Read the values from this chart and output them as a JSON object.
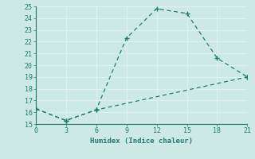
{
  "line1_x": [
    0,
    3,
    6,
    9,
    12,
    15,
    18,
    21
  ],
  "line1_y": [
    16.3,
    15.3,
    16.2,
    22.3,
    24.8,
    24.4,
    20.6,
    19.0
  ],
  "line2_x": [
    0,
    3,
    6,
    21
  ],
  "line2_y": [
    16.3,
    15.3,
    16.2,
    19.0
  ],
  "color": "#217a6e",
  "xlabel": "Humidex (Indice chaleur)",
  "xlim": [
    0,
    21
  ],
  "ylim": [
    15,
    25
  ],
  "xticks": [
    0,
    3,
    6,
    9,
    12,
    15,
    18,
    21
  ],
  "yticks": [
    15,
    16,
    17,
    18,
    19,
    20,
    21,
    22,
    23,
    24,
    25
  ],
  "bg_color": "#cce9e5",
  "grid_color": "#e0f0ee",
  "axis_color": "#217a6e"
}
